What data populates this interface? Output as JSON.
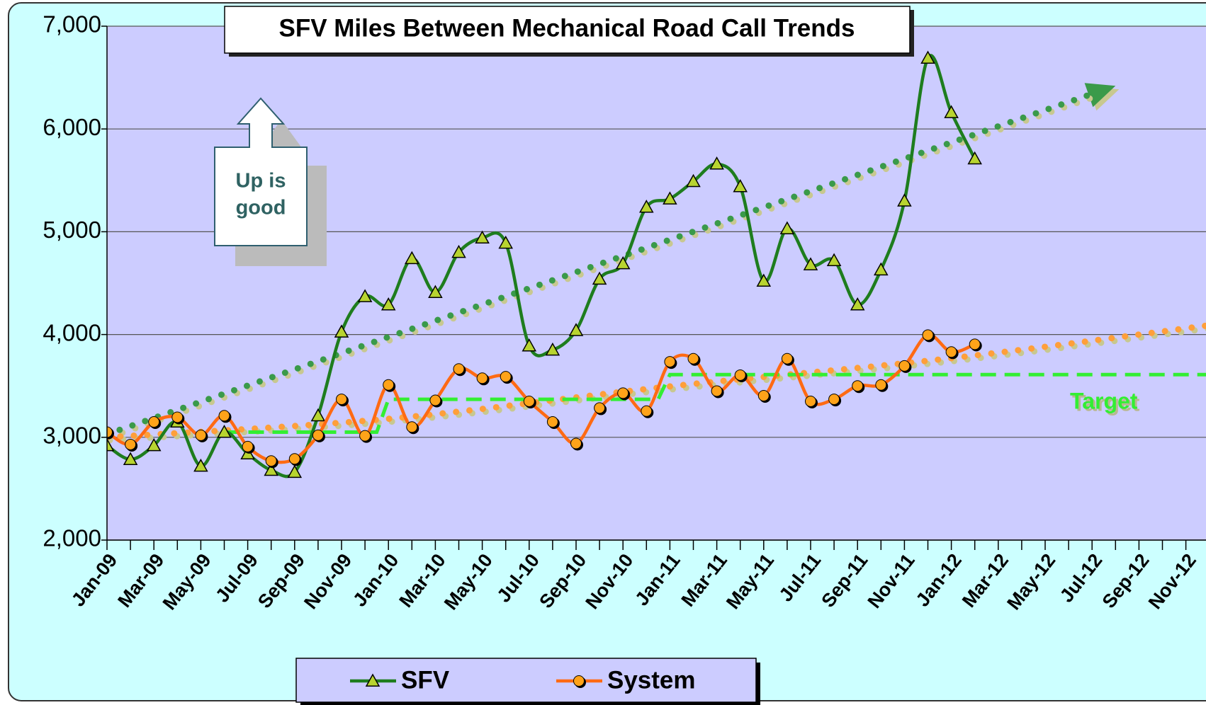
{
  "chart_data": {
    "type": "line",
    "title": "SFV Miles Between Mechanical Road Call Trends",
    "categories": [
      "Jan-09",
      null,
      "Mar-09",
      null,
      "May-09",
      null,
      "Jul-09",
      null,
      "Sep-09",
      null,
      "Nov-09",
      null,
      "Jan-10",
      null,
      "Mar-10",
      null,
      "May-10",
      null,
      "Jul-10",
      null,
      "Sep-10",
      null,
      "Nov-10",
      null,
      "Jan-11",
      null,
      "Mar-11",
      null,
      "May-11",
      null,
      "Jul-11",
      null,
      "Sep-11",
      null,
      "Nov-11",
      null,
      "Jan-12",
      null,
      "Mar-12",
      null,
      "May-12",
      null,
      "Jul-12",
      null,
      "Sep-12",
      null,
      "Nov-12",
      null
    ],
    "ylim": [
      2000,
      7000
    ],
    "yticks": [
      {
        "value": 2000,
        "label": "2,000"
      },
      {
        "value": 3000,
        "label": "3,000"
      },
      {
        "value": 4000,
        "label": "4,000"
      },
      {
        "value": 5000,
        "label": "5,000"
      },
      {
        "value": 6000,
        "label": "6,000"
      },
      {
        "value": 7000,
        "label": "7,000"
      }
    ],
    "grid": true,
    "legend": "bottom",
    "series": [
      {
        "name": "SFV",
        "color": "#1e7d1e",
        "marker": "triangle",
        "marker_color": "#b8d430",
        "values": [
          2920,
          2785,
          2920,
          3150,
          2720,
          3050,
          2840,
          2680,
          2660,
          3210,
          4025,
          4370,
          4290,
          4740,
          4410,
          4800,
          4940,
          4890,
          3890,
          3850,
          4040,
          4540,
          4690,
          5240,
          5320,
          5490,
          5660,
          5440,
          4520,
          5030,
          4680,
          4720,
          4290,
          4630,
          5300,
          6690,
          6160,
          5710,
          null,
          null,
          null,
          null,
          null,
          null,
          null,
          null,
          null,
          null
        ]
      },
      {
        "name": "System",
        "color": "#ff6a13",
        "marker": "circle",
        "marker_color": "#ffa319",
        "values": [
          3050,
          2930,
          3150,
          3195,
          3020,
          3210,
          2910,
          2770,
          2790,
          3020,
          3370,
          3015,
          3510,
          3100,
          3360,
          3665,
          3575,
          3590,
          3350,
          3150,
          2940,
          3285,
          3430,
          3255,
          3735,
          3765,
          3450,
          3605,
          3405,
          3765,
          3350,
          3370,
          3500,
          3510,
          3695,
          3995,
          3830,
          3905,
          null,
          null,
          null,
          null,
          null,
          null,
          null,
          null,
          null,
          null
        ]
      },
      {
        "name": "Target",
        "color": "#33ee33",
        "dash": true,
        "in_legend": false,
        "values": [
          null,
          null,
          null,
          null,
          null,
          3050,
          3050,
          3050,
          3050,
          3050,
          3050,
          3050,
          3370,
          3370,
          3370,
          3370,
          3370,
          3370,
          3370,
          3370,
          3370,
          3370,
          3370,
          3370,
          3610,
          3610,
          3610,
          3610,
          3610,
          3610,
          3610,
          3610,
          3610,
          3610,
          3610,
          3610,
          3610,
          3610,
          3610,
          3610,
          3610,
          3610,
          3610,
          3610,
          3610,
          3610,
          3610,
          3610
        ]
      }
    ],
    "trend_lines": [
      {
        "color": "#3a9a4a",
        "category_index": [
          0,
          43
        ],
        "values": [
          3030,
          6420
        ],
        "arrow": true
      },
      {
        "color": "#ff9f3a",
        "category_index": [
          0,
          12,
          24,
          36,
          47
        ],
        "values": [
          3000,
          3180,
          3495,
          3770,
          4090
        ]
      }
    ],
    "callout": [
      "Up is",
      "good"
    ]
  }
}
